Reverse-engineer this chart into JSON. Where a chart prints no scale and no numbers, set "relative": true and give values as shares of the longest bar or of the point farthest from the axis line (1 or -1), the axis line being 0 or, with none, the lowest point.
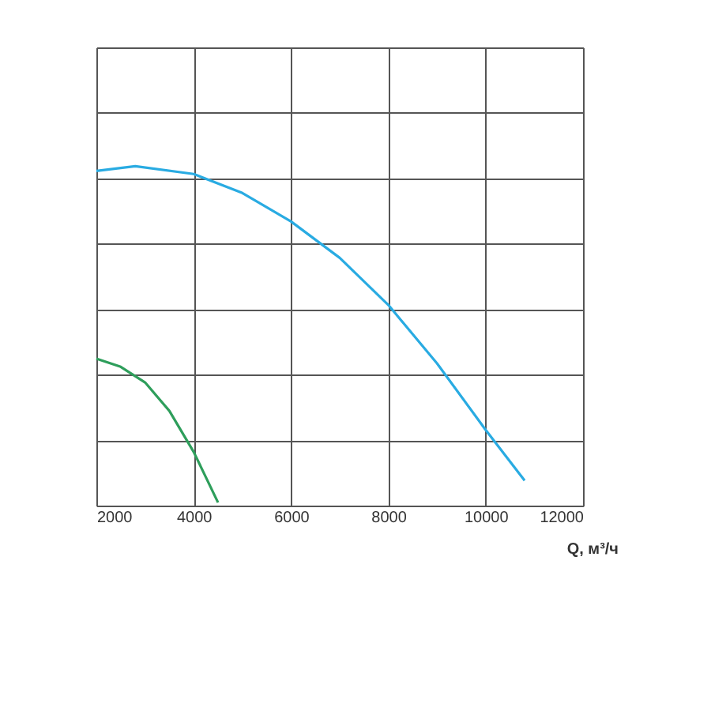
{
  "chart_data": {
    "type": "line",
    "relative": true,
    "xlabel": "Q, м³/ч",
    "xlim": [
      2000,
      12000
    ],
    "xticks": [
      2000,
      4000,
      6000,
      8000,
      10000,
      12000
    ],
    "grid": true,
    "marker": "none",
    "line_style": "solid",
    "legend": false,
    "series": [
      {
        "color": "#29abe2",
        "x": [
          2000,
          2800,
          4000,
          5000,
          6000,
          7000,
          8000,
          9000,
          10000,
          10800
        ],
        "values": [
          0.986,
          1,
          0.977,
          0.921,
          0.837,
          0.73,
          0.591,
          0.419,
          0.223,
          0.074
        ]
      },
      {
        "color": "#2e9e5b",
        "x": [
          2000,
          2500,
          3000,
          3500,
          4000,
          4500
        ],
        "values": [
          0.433,
          0.409,
          0.363,
          0.279,
          0.158,
          0.009
        ]
      }
    ]
  }
}
